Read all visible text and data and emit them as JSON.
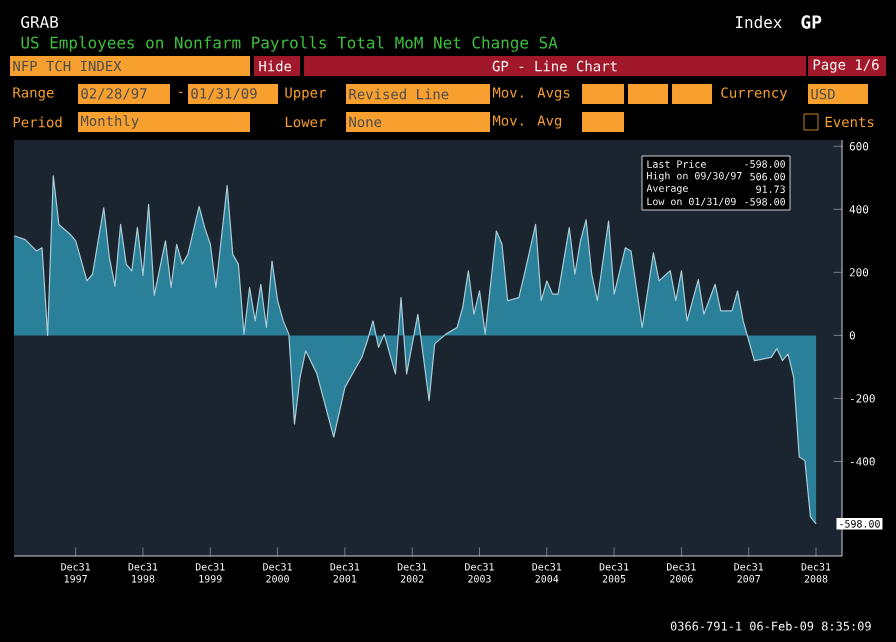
{
  "chart_data": {
    "type": "area",
    "title": "US Employees on Nonfarm Payrolls Total MoM Net Change SA",
    "x": [
      "1997-02",
      "1997-04",
      "1997-06",
      "1997-07",
      "1997-08",
      "1997-09",
      "1997-10",
      "1997-12",
      "1998-01",
      "1998-03",
      "1998-04",
      "1998-06",
      "1998-07",
      "1998-08",
      "1998-09",
      "1998-10",
      "1998-11",
      "1998-12",
      "1999-01",
      "1999-02",
      "1999-03",
      "1999-05",
      "1999-06",
      "1999-07",
      "1999-08",
      "1999-09",
      "1999-11",
      "1999-12",
      "2000-01",
      "2000-02",
      "2000-04",
      "2000-05",
      "2000-06",
      "2000-07",
      "2000-08",
      "2000-09",
      "2000-10",
      "2000-11",
      "2000-12",
      "2001-01",
      "2001-02",
      "2001-03",
      "2001-04",
      "2001-05",
      "2001-06",
      "2001-08",
      "2001-11",
      "2002-01",
      "2002-02",
      "2002-04",
      "2002-05",
      "2002-06",
      "2002-07",
      "2002-08",
      "2002-10",
      "2002-11",
      "2002-12",
      "2003-02",
      "2003-04",
      "2003-05",
      "2003-07",
      "2003-09",
      "2003-10",
      "2003-11",
      "2003-12",
      "2004-01",
      "2004-02",
      "2004-04",
      "2004-05",
      "2004-06",
      "2004-08",
      "2004-09",
      "2004-11",
      "2004-12",
      "2005-01",
      "2005-02",
      "2005-03",
      "2005-05",
      "2005-06",
      "2005-07",
      "2005-08",
      "2005-09",
      "2005-10",
      "2005-12",
      "2006-01",
      "2006-03",
      "2006-04",
      "2006-06",
      "2006-08",
      "2006-09",
      "2006-11",
      "2006-12",
      "2007-01",
      "2007-02",
      "2007-04",
      "2007-05",
      "2007-07",
      "2007-08",
      "2007-10",
      "2007-11",
      "2007-12",
      "2008-02",
      "2008-05",
      "2008-06",
      "2008-07",
      "2008-08",
      "2008-09",
      "2008-10",
      "2008-11",
      "2008-12",
      "2009-01"
    ],
    "series": [
      {
        "color": "#2a7f99",
        "values": [
          316,
          304,
          268,
          278,
          0,
          506,
          352,
          321,
          300,
          173,
          194,
          405,
          247,
          156,
          352,
          226,
          205,
          342,
          190,
          416,
          127,
          300,
          152,
          289,
          226,
          257,
          409,
          342,
          289,
          152,
          475,
          257,
          226,
          4,
          152,
          46,
          162,
          25,
          236,
          110,
          46,
          4,
          -281,
          -133,
          -49,
          -122,
          -323,
          -165,
          -133,
          -70,
          -17,
          46,
          -38,
          4,
          -122,
          120,
          -122,
          67,
          -207,
          -27,
          4,
          25,
          89,
          205,
          67,
          141,
          4,
          331,
          289,
          110,
          120,
          194,
          352,
          110,
          173,
          131,
          131,
          342,
          194,
          300,
          367,
          194,
          110,
          363,
          131,
          278,
          268,
          25,
          262,
          173,
          205,
          110,
          205,
          46,
          177,
          67,
          162,
          78,
          78,
          141,
          46,
          -80,
          -70,
          -42,
          -80,
          -59,
          -133,
          -386,
          -397,
          -576,
          -598
        ]
      }
    ],
    "xlim": [
      "1997-02",
      "2009-05-20"
    ],
    "ylim": [
      -700,
      620
    ],
    "xticks": [
      {
        "value": "1997-12-31",
        "label": "Dec31 1997"
      },
      {
        "value": "1998-12-31",
        "label": "Dec31 1998"
      },
      {
        "value": "1999-12-31",
        "label": "Dec31 1999"
      },
      {
        "value": "2000-12-31",
        "label": "Dec31 2000"
      },
      {
        "value": "2001-12-31",
        "label": "Dec31 2001"
      },
      {
        "value": "2002-12-31",
        "label": "Dec31 2002"
      },
      {
        "value": "2003-12-31",
        "label": "Dec31 2003"
      },
      {
        "value": "2004-12-31",
        "label": "Dec31 2004"
      },
      {
        "value": "2005-12-31",
        "label": "Dec31 2005"
      },
      {
        "value": "2006-12-31",
        "label": "Dec31 2006"
      },
      {
        "value": "2007-12-31",
        "label": "Dec31 2007"
      },
      {
        "value": "2008-12-31",
        "label": "Dec31 2008"
      }
    ],
    "yticks": [
      -400,
      -200,
      0,
      200,
      400,
      600
    ],
    "annotations": [
      "GRAB",
      "Index",
      "GP",
      "NFP TCH INDEX",
      "Hide",
      "GP - Line Chart",
      "Page 1/6",
      "Range",
      "02/28/97",
      "-",
      "01/31/09",
      "Upper",
      "Revised Line",
      "Mov. Avgs",
      "Currency",
      "USD",
      "Period",
      "Monthly",
      "Lower",
      "None",
      "Mov. Avg",
      "Events",
      "Last Price",
      "-598.00",
      "High on 09/30/97",
      "506.00",
      "Average",
      "91.73",
      "Low on 01/31/09",
      "-598.00",
      {
        "text": "-598.00",
        "x": "2009-01",
        "y": -598
      },
      "0366-791-1 06-Feb-09 8:35:09"
    ]
  }
}
